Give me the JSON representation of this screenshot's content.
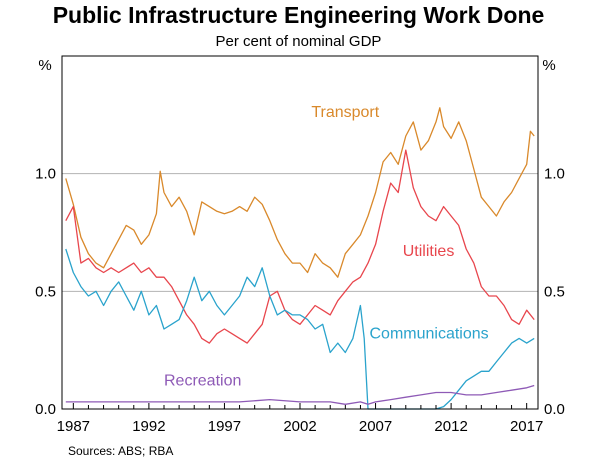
{
  "chart_data": {
    "type": "line",
    "title": "Public Infrastructure Engineering Work Done",
    "subtitle": "Per cent of nominal GDP",
    "sources": "Sources:   ABS; RBA",
    "y_unit_left": "%",
    "y_unit_right": "%",
    "ylim": [
      0,
      1.5
    ],
    "y_ticks": [
      "0.0",
      "0.5",
      "1.0"
    ],
    "y_tick_values": [
      0,
      0.5,
      1.0
    ],
    "xlim": [
      1986.25,
      2017.75
    ],
    "x_ticks": [
      "1987",
      "1992",
      "1997",
      "2002",
      "2007",
      "2012",
      "2017"
    ],
    "x_tick_values": [
      1987,
      1992,
      1997,
      2002,
      2007,
      2012,
      2017
    ],
    "grid": "horizontal",
    "series": [
      {
        "name": "Transport",
        "color": "#d9892b",
        "points": [
          [
            1986.5,
            0.98
          ],
          [
            1987.0,
            0.87
          ],
          [
            1987.5,
            0.73
          ],
          [
            1988.0,
            0.66
          ],
          [
            1988.5,
            0.62
          ],
          [
            1989.0,
            0.6
          ],
          [
            1989.5,
            0.66
          ],
          [
            1990.0,
            0.72
          ],
          [
            1990.5,
            0.78
          ],
          [
            1991.0,
            0.76
          ],
          [
            1991.5,
            0.7
          ],
          [
            1992.0,
            0.74
          ],
          [
            1992.5,
            0.83
          ],
          [
            1992.75,
            1.01
          ],
          [
            1993.0,
            0.92
          ],
          [
            1993.5,
            0.86
          ],
          [
            1994.0,
            0.9
          ],
          [
            1994.5,
            0.84
          ],
          [
            1995.0,
            0.74
          ],
          [
            1995.5,
            0.88
          ],
          [
            1996.0,
            0.86
          ],
          [
            1996.5,
            0.84
          ],
          [
            1997.0,
            0.83
          ],
          [
            1997.5,
            0.84
          ],
          [
            1998.0,
            0.86
          ],
          [
            1998.5,
            0.84
          ],
          [
            1999.0,
            0.9
          ],
          [
            1999.5,
            0.87
          ],
          [
            2000.0,
            0.8
          ],
          [
            2000.5,
            0.72
          ],
          [
            2001.0,
            0.66
          ],
          [
            2001.5,
            0.62
          ],
          [
            2002.0,
            0.62
          ],
          [
            2002.5,
            0.58
          ],
          [
            2003.0,
            0.66
          ],
          [
            2003.5,
            0.62
          ],
          [
            2004.0,
            0.6
          ],
          [
            2004.5,
            0.56
          ],
          [
            2005.0,
            0.66
          ],
          [
            2005.5,
            0.7
          ],
          [
            2006.0,
            0.74
          ],
          [
            2006.5,
            0.82
          ],
          [
            2007.0,
            0.92
          ],
          [
            2007.5,
            1.05
          ],
          [
            2008.0,
            1.09
          ],
          [
            2008.5,
            1.04
          ],
          [
            2009.0,
            1.16
          ],
          [
            2009.5,
            1.22
          ],
          [
            2010.0,
            1.1
          ],
          [
            2010.5,
            1.14
          ],
          [
            2011.0,
            1.22
          ],
          [
            2011.25,
            1.28
          ],
          [
            2011.5,
            1.2
          ],
          [
            2012.0,
            1.15
          ],
          [
            2012.5,
            1.22
          ],
          [
            2013.0,
            1.14
          ],
          [
            2013.5,
            1.02
          ],
          [
            2014.0,
            0.9
          ],
          [
            2014.5,
            0.86
          ],
          [
            2015.0,
            0.82
          ],
          [
            2015.5,
            0.88
          ],
          [
            2016.0,
            0.92
          ],
          [
            2016.5,
            0.98
          ],
          [
            2017.0,
            1.04
          ],
          [
            2017.25,
            1.18
          ],
          [
            2017.5,
            1.16
          ]
        ]
      },
      {
        "name": "Utilities",
        "color": "#e8464d",
        "points": [
          [
            1986.5,
            0.8
          ],
          [
            1987.0,
            0.86
          ],
          [
            1987.5,
            0.62
          ],
          [
            1988.0,
            0.64
          ],
          [
            1988.5,
            0.6
          ],
          [
            1989.0,
            0.58
          ],
          [
            1989.5,
            0.6
          ],
          [
            1990.0,
            0.58
          ],
          [
            1990.5,
            0.6
          ],
          [
            1991.0,
            0.62
          ],
          [
            1991.5,
            0.58
          ],
          [
            1992.0,
            0.6
          ],
          [
            1992.5,
            0.56
          ],
          [
            1993.0,
            0.56
          ],
          [
            1993.5,
            0.52
          ],
          [
            1994.0,
            0.46
          ],
          [
            1994.5,
            0.4
          ],
          [
            1995.0,
            0.36
          ],
          [
            1995.5,
            0.3
          ],
          [
            1996.0,
            0.28
          ],
          [
            1996.5,
            0.32
          ],
          [
            1997.0,
            0.34
          ],
          [
            1997.5,
            0.32
          ],
          [
            1998.0,
            0.3
          ],
          [
            1998.5,
            0.28
          ],
          [
            1999.0,
            0.32
          ],
          [
            1999.5,
            0.36
          ],
          [
            2000.0,
            0.48
          ],
          [
            2000.5,
            0.5
          ],
          [
            2001.0,
            0.42
          ],
          [
            2001.5,
            0.38
          ],
          [
            2002.0,
            0.36
          ],
          [
            2002.5,
            0.4
          ],
          [
            2003.0,
            0.44
          ],
          [
            2003.5,
            0.42
          ],
          [
            2004.0,
            0.4
          ],
          [
            2004.5,
            0.46
          ],
          [
            2005.0,
            0.5
          ],
          [
            2005.5,
            0.54
          ],
          [
            2006.0,
            0.56
          ],
          [
            2006.5,
            0.62
          ],
          [
            2007.0,
            0.7
          ],
          [
            2007.5,
            0.84
          ],
          [
            2008.0,
            0.96
          ],
          [
            2008.5,
            0.92
          ],
          [
            2009.0,
            1.1
          ],
          [
            2009.5,
            0.94
          ],
          [
            2010.0,
            0.86
          ],
          [
            2010.5,
            0.82
          ],
          [
            2011.0,
            0.8
          ],
          [
            2011.5,
            0.86
          ],
          [
            2012.0,
            0.82
          ],
          [
            2012.5,
            0.78
          ],
          [
            2013.0,
            0.68
          ],
          [
            2013.5,
            0.62
          ],
          [
            2014.0,
            0.52
          ],
          [
            2014.5,
            0.48
          ],
          [
            2015.0,
            0.48
          ],
          [
            2015.5,
            0.44
          ],
          [
            2016.0,
            0.38
          ],
          [
            2016.5,
            0.36
          ],
          [
            2017.0,
            0.42
          ],
          [
            2017.5,
            0.38
          ]
        ]
      },
      {
        "name": "Communications",
        "color": "#2aa3cc",
        "points": [
          [
            1986.5,
            0.68
          ],
          [
            1987.0,
            0.58
          ],
          [
            1987.5,
            0.52
          ],
          [
            1988.0,
            0.48
          ],
          [
            1988.5,
            0.5
          ],
          [
            1989.0,
            0.44
          ],
          [
            1989.5,
            0.5
          ],
          [
            1990.0,
            0.54
          ],
          [
            1990.5,
            0.48
          ],
          [
            1991.0,
            0.42
          ],
          [
            1991.5,
            0.5
          ],
          [
            1992.0,
            0.4
          ],
          [
            1992.5,
            0.44
          ],
          [
            1993.0,
            0.34
          ],
          [
            1993.5,
            0.36
          ],
          [
            1994.0,
            0.38
          ],
          [
            1994.5,
            0.46
          ],
          [
            1995.0,
            0.56
          ],
          [
            1995.5,
            0.46
          ],
          [
            1996.0,
            0.5
          ],
          [
            1996.5,
            0.44
          ],
          [
            1997.0,
            0.4
          ],
          [
            1997.5,
            0.44
          ],
          [
            1998.0,
            0.48
          ],
          [
            1998.5,
            0.56
          ],
          [
            1999.0,
            0.52
          ],
          [
            1999.5,
            0.6
          ],
          [
            2000.0,
            0.48
          ],
          [
            2000.5,
            0.4
          ],
          [
            2001.0,
            0.42
          ],
          [
            2001.5,
            0.4
          ],
          [
            2002.0,
            0.4
          ],
          [
            2002.5,
            0.38
          ],
          [
            2003.0,
            0.34
          ],
          [
            2003.5,
            0.36
          ],
          [
            2004.0,
            0.24
          ],
          [
            2004.5,
            0.28
          ],
          [
            2005.0,
            0.24
          ],
          [
            2005.5,
            0.3
          ],
          [
            2006.0,
            0.44
          ],
          [
            2006.25,
            0.3
          ],
          [
            2006.5,
            0.0
          ],
          [
            2007.0,
            0.0
          ],
          [
            2008.0,
            0.0
          ],
          [
            2009.0,
            0.0
          ],
          [
            2010.0,
            0.0
          ],
          [
            2011.0,
            0.0
          ],
          [
            2011.5,
            0.01
          ],
          [
            2012.0,
            0.04
          ],
          [
            2012.5,
            0.08
          ],
          [
            2013.0,
            0.12
          ],
          [
            2013.5,
            0.14
          ],
          [
            2014.0,
            0.16
          ],
          [
            2014.5,
            0.16
          ],
          [
            2015.0,
            0.2
          ],
          [
            2015.5,
            0.24
          ],
          [
            2016.0,
            0.28
          ],
          [
            2016.5,
            0.3
          ],
          [
            2017.0,
            0.28
          ],
          [
            2017.5,
            0.3
          ]
        ]
      },
      {
        "name": "Recreation",
        "color": "#8e5ab6",
        "points": [
          [
            1986.5,
            0.03
          ],
          [
            1988.0,
            0.03
          ],
          [
            1990.0,
            0.03
          ],
          [
            1992.0,
            0.03
          ],
          [
            1994.0,
            0.03
          ],
          [
            1996.0,
            0.03
          ],
          [
            1998.0,
            0.03
          ],
          [
            2000.0,
            0.04
          ],
          [
            2002.0,
            0.03
          ],
          [
            2004.0,
            0.03
          ],
          [
            2005.0,
            0.02
          ],
          [
            2006.0,
            0.03
          ],
          [
            2006.5,
            0.02
          ],
          [
            2007.0,
            0.03
          ],
          [
            2008.0,
            0.04
          ],
          [
            2009.0,
            0.05
          ],
          [
            2010.0,
            0.06
          ],
          [
            2011.0,
            0.07
          ],
          [
            2012.0,
            0.07
          ],
          [
            2013.0,
            0.06
          ],
          [
            2014.0,
            0.06
          ],
          [
            2015.0,
            0.07
          ],
          [
            2016.0,
            0.08
          ],
          [
            2017.0,
            0.09
          ],
          [
            2017.5,
            0.1
          ]
        ]
      }
    ]
  }
}
